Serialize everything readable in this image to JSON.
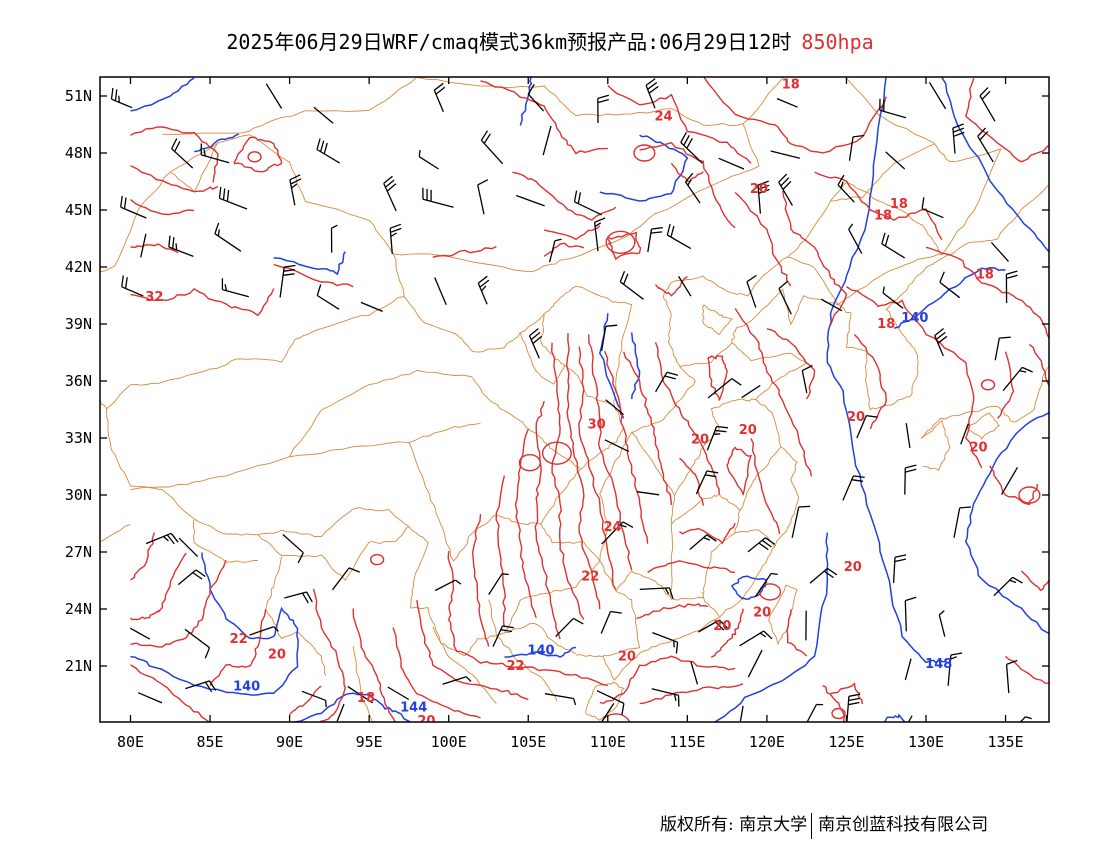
{
  "title": {
    "main": "2025年06月29日WRF/cmaq模式36km预报产品:06月29日12时",
    "level": "850hpa"
  },
  "axes": {
    "lat_labels": [
      "51N",
      "48N",
      "45N",
      "42N",
      "39N",
      "36N",
      "33N",
      "30N",
      "27N",
      "24N",
      "21N"
    ],
    "lon_labels": [
      "80E",
      "85E",
      "90E",
      "95E",
      "100E",
      "105E",
      "110E",
      "115E",
      "120E",
      "125E",
      "130E",
      "135E"
    ]
  },
  "contour_labels": [
    {
      "text": "24",
      "color": "#e03030",
      "lon": 113.5,
      "lat": 49.7
    },
    {
      "text": "18",
      "color": "#e03030",
      "lon": 121.5,
      "lat": 51.4
    },
    {
      "text": "20",
      "color": "#e03030",
      "lon": 119.5,
      "lat": 45.9
    },
    {
      "text": "18",
      "color": "#e03030",
      "lon": 127.3,
      "lat": 44.5
    },
    {
      "text": "18",
      "color": "#e03030",
      "lon": 128.3,
      "lat": 45.1
    },
    {
      "text": "18",
      "color": "#e03030",
      "lon": 133.7,
      "lat": 41.4
    },
    {
      "text": "18",
      "color": "#e03030",
      "lon": 127.5,
      "lat": 38.8
    },
    {
      "text": "140",
      "color": "#2040e0",
      "lon": 129.3,
      "lat": 39.1
    },
    {
      "text": "32",
      "color": "#e03030",
      "lon": 81.5,
      "lat": 40.2
    },
    {
      "text": "30",
      "color": "#e03030",
      "lon": 109.3,
      "lat": 33.5
    },
    {
      "text": "20",
      "color": "#e03030",
      "lon": 115.8,
      "lat": 32.7
    },
    {
      "text": "20",
      "color": "#e03030",
      "lon": 118.8,
      "lat": 33.2
    },
    {
      "text": "20",
      "color": "#e03030",
      "lon": 125.6,
      "lat": 33.9
    },
    {
      "text": "20",
      "color": "#e03030",
      "lon": 133.3,
      "lat": 32.3
    },
    {
      "text": "24",
      "color": "#e03030",
      "lon": 110.3,
      "lat": 28.1
    },
    {
      "text": "22",
      "color": "#e03030",
      "lon": 108.9,
      "lat": 25.5
    },
    {
      "text": "20",
      "color": "#e03030",
      "lon": 125.4,
      "lat": 26.0
    },
    {
      "text": "20",
      "color": "#e03030",
      "lon": 119.7,
      "lat": 23.6
    },
    {
      "text": "20",
      "color": "#e03030",
      "lon": 117.2,
      "lat": 22.9
    },
    {
      "text": "148",
      "color": "#2040e0",
      "lon": 130.8,
      "lat": 20.9
    },
    {
      "text": "22",
      "color": "#e03030",
      "lon": 86.8,
      "lat": 22.2
    },
    {
      "text": "20",
      "color": "#e03030",
      "lon": 89.2,
      "lat": 21.4
    },
    {
      "text": "140",
      "color": "#2040e0",
      "lon": 87.3,
      "lat": 19.7
    },
    {
      "text": "140",
      "color": "#2040e0",
      "lon": 105.8,
      "lat": 21.6
    },
    {
      "text": "22",
      "color": "#e03030",
      "lon": 104.2,
      "lat": 20.8
    },
    {
      "text": "20",
      "color": "#e03030",
      "lon": 111.2,
      "lat": 21.3
    },
    {
      "text": "18",
      "color": "#e03030",
      "lon": 94.8,
      "lat": 19.1
    },
    {
      "text": "144",
      "color": "#2040e0",
      "lon": 97.8,
      "lat": 18.6
    },
    {
      "text": "20",
      "color": "#e03030",
      "lon": 98.6,
      "lat": 17.9
    }
  ],
  "footer": {
    "left": "版权所有: 南京大学",
    "right": "南京创蓝科技有限公司"
  }
}
